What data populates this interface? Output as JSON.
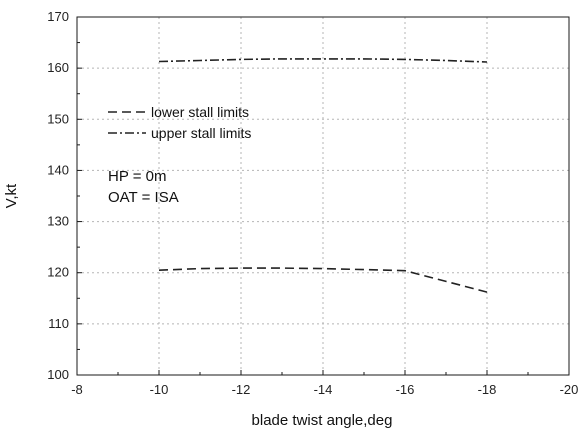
{
  "chart_data": {
    "type": "line",
    "xlabel": "blade twist angle,deg",
    "ylabel": "V,kt",
    "xlim": [
      -8,
      -20
    ],
    "ylim": [
      100,
      170
    ],
    "x_ticks": [
      -8,
      -10,
      -12,
      -14,
      -16,
      -18,
      -20
    ],
    "y_ticks": [
      100,
      110,
      120,
      130,
      140,
      150,
      160,
      170
    ],
    "x_tick_labels": [
      "-8",
      "-10",
      "-12",
      "-14",
      "-16",
      "-18",
      "-20"
    ],
    "y_tick_labels": [
      "100",
      "110",
      "120",
      "130",
      "140",
      "150",
      "160",
      "170"
    ],
    "grid": true,
    "legend_placement": "upper-left",
    "series": [
      {
        "name": "lower stall limits",
        "line_style": "dashed",
        "color": "#222222",
        "x": [
          -10,
          -11,
          -12,
          -13,
          -14,
          -15,
          -16,
          -17,
          -18
        ],
        "y": [
          120.5,
          120.8,
          120.9,
          120.9,
          120.8,
          120.6,
          120.4,
          118.3,
          116.2
        ]
      },
      {
        "name": "upper stall limits",
        "line_style": "dash-dot",
        "color": "#222222",
        "x": [
          -10,
          -11,
          -12,
          -13,
          -14,
          -15,
          -16,
          -17,
          -18
        ],
        "y": [
          161.3,
          161.5,
          161.7,
          161.8,
          161.8,
          161.8,
          161.7,
          161.5,
          161.2
        ]
      }
    ],
    "annotations": [
      "HP = 0m",
      "OAT = ISA"
    ]
  },
  "colors": {
    "axis": "#1a1a1a",
    "grid": "#b5b5b5",
    "line": "#222222",
    "background": "#ffffff"
  }
}
